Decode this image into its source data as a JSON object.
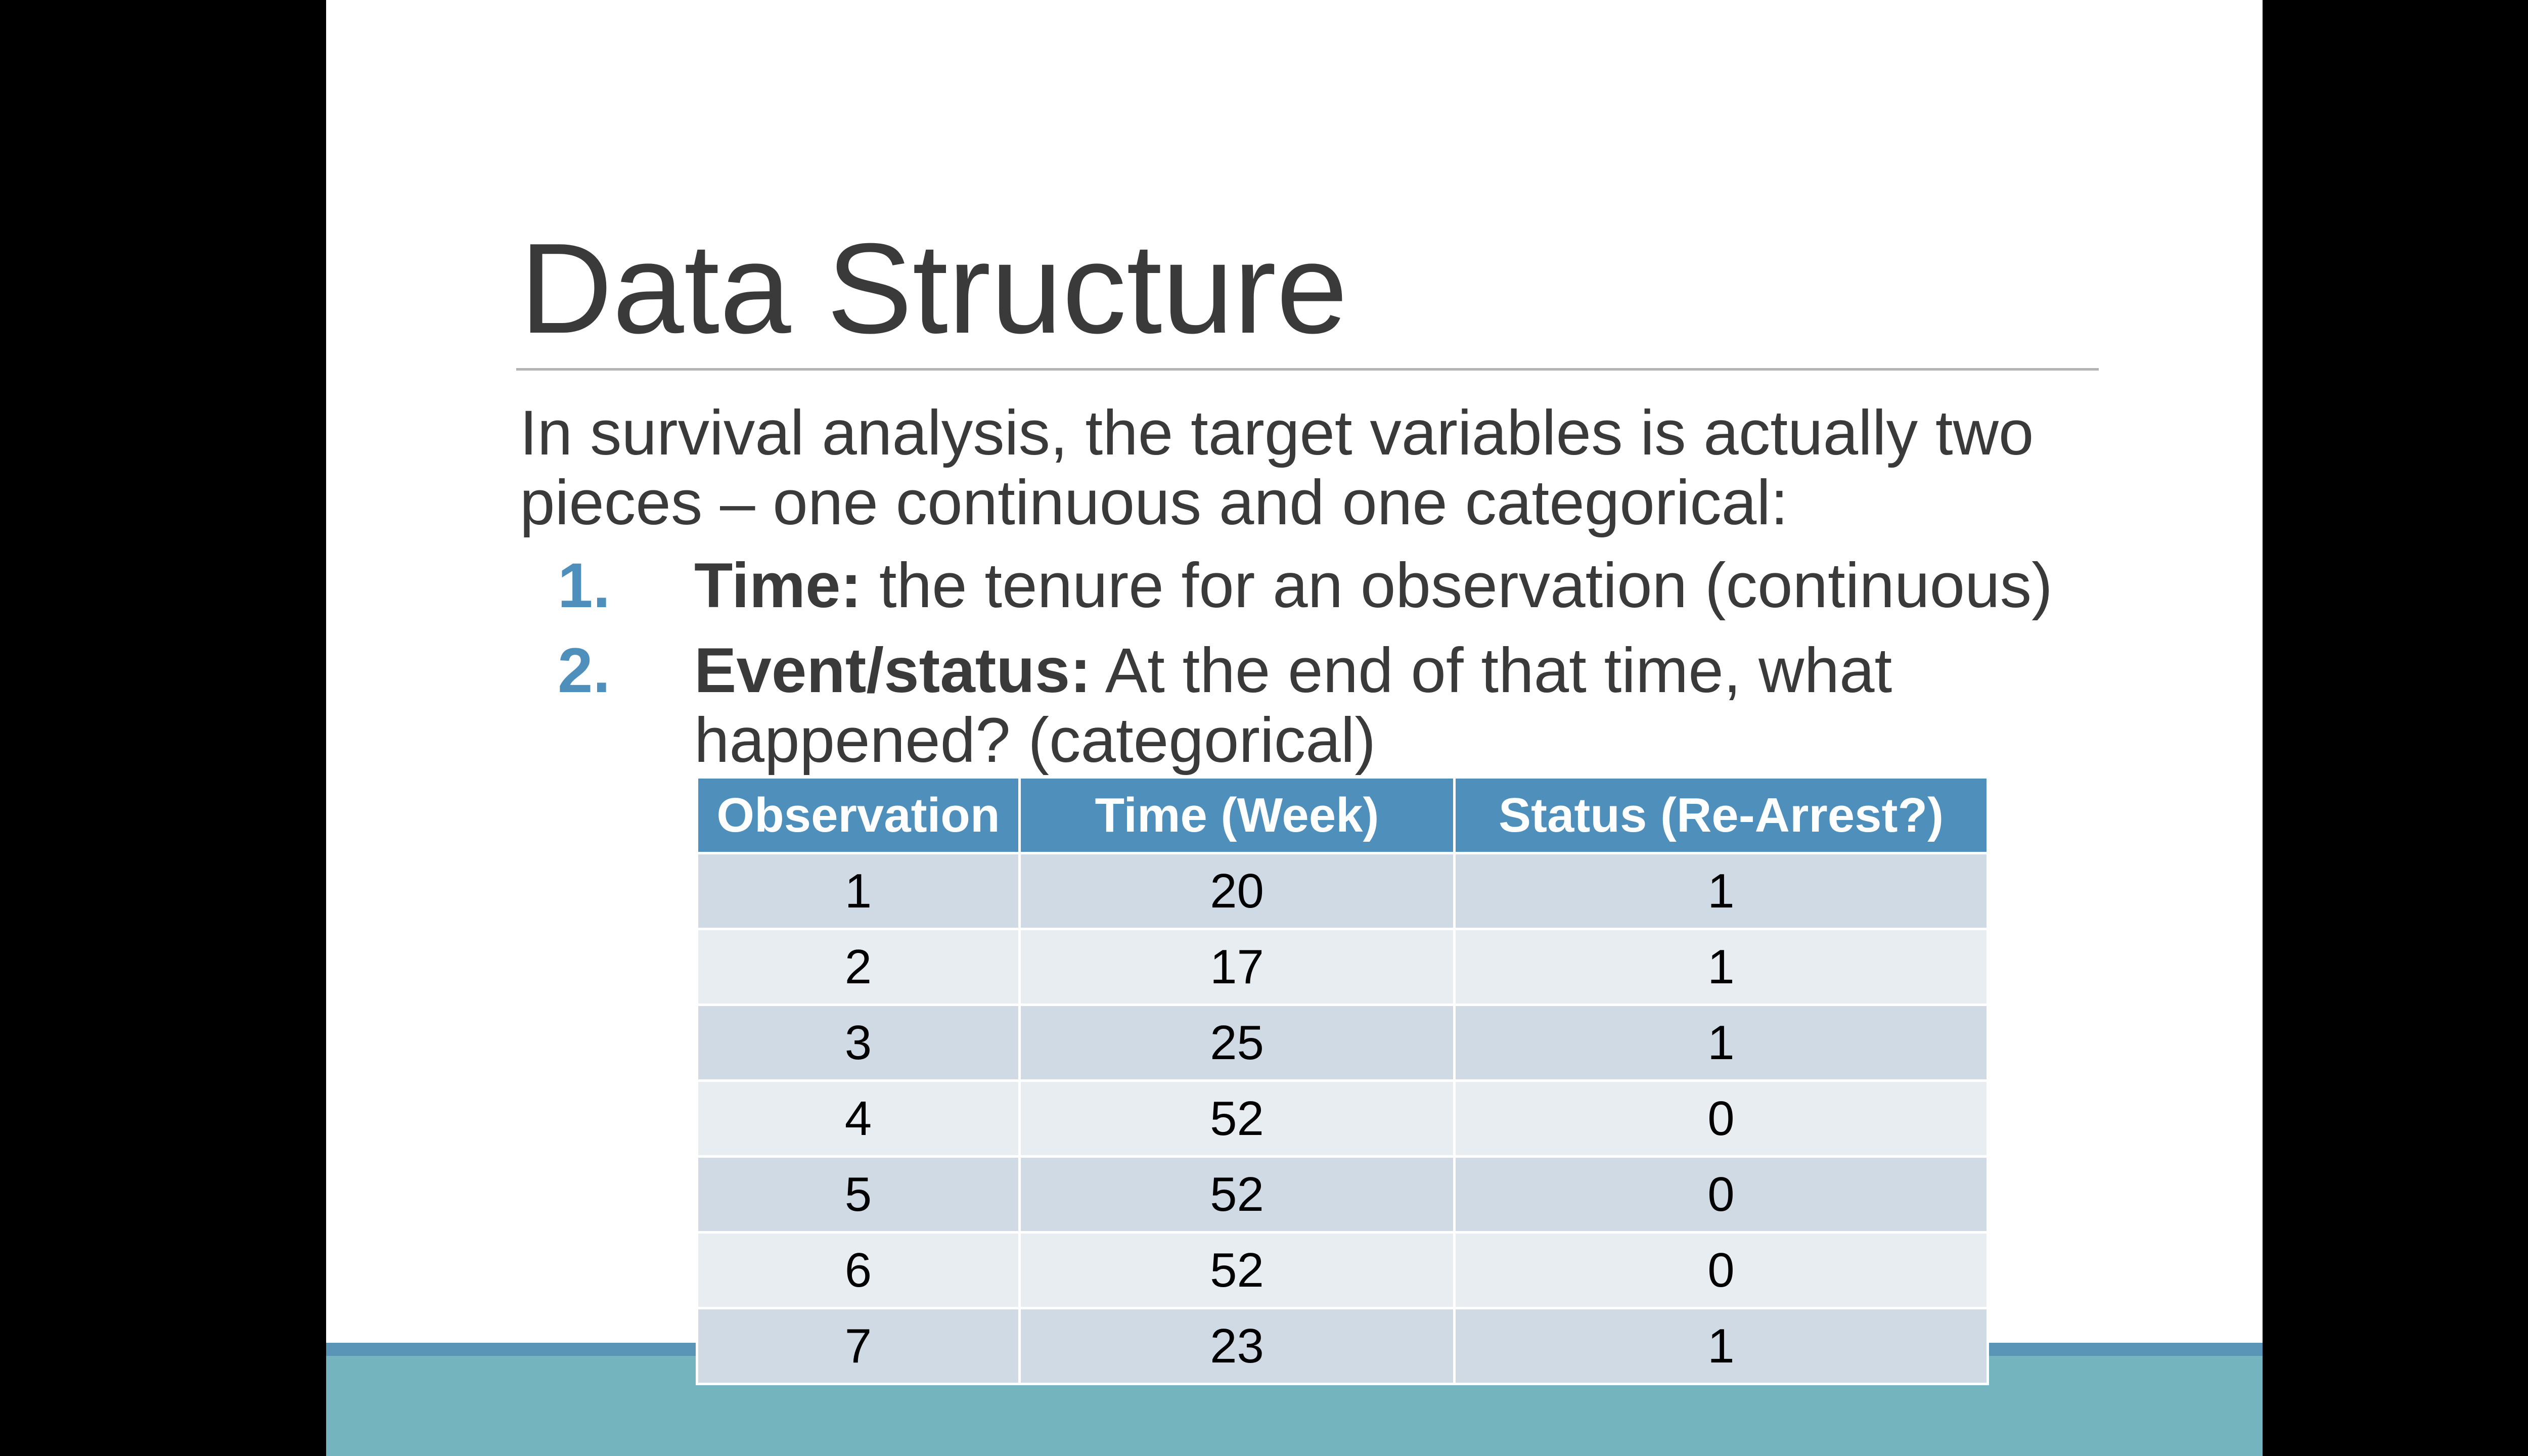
{
  "slide": {
    "title": "Data Structure",
    "intro": "In survival analysis, the target variables is actually two pieces – one continuous and one categorical:",
    "items": [
      {
        "number": "1.",
        "term": "Time:",
        "text": " the tenure for an observation (continuous)"
      },
      {
        "number": "2.",
        "term": "Event/status:",
        "text": " At the end of that time, what happened? (categorical)"
      }
    ],
    "table": {
      "headers": [
        "Observation",
        "Time (Week)",
        "Status (Re-Arrest?)"
      ],
      "rows": [
        [
          "1",
          "20",
          "1"
        ],
        [
          "2",
          "17",
          "1"
        ],
        [
          "3",
          "25",
          "1"
        ],
        [
          "4",
          "52",
          "0"
        ],
        [
          "5",
          "52",
          "0"
        ],
        [
          "6",
          "52",
          "0"
        ],
        [
          "7",
          "23",
          "1"
        ]
      ]
    }
  },
  "colors": {
    "accent": "#4f8fbb",
    "footer_band": "#74b4be",
    "row_dark": "#cfdae5",
    "row_light": "#e8edf2",
    "text": "#3a3a3a"
  }
}
